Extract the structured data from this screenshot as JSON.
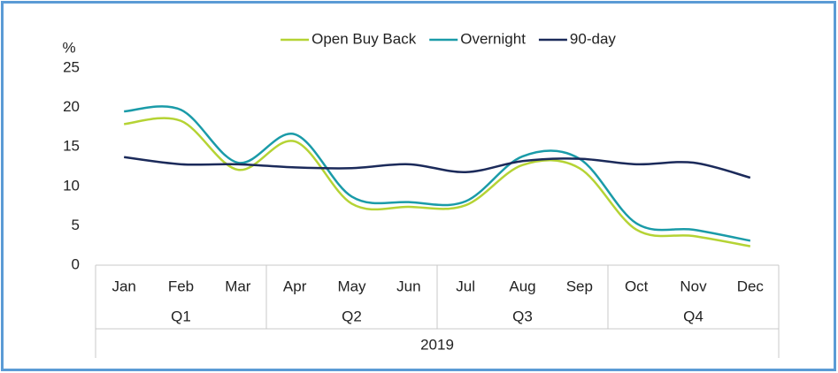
{
  "chart_data": {
    "type": "line",
    "ylabel": "%",
    "categories": [
      "Jan",
      "Feb",
      "Mar",
      "Apr",
      "May",
      "Jun",
      "Jul",
      "Aug",
      "Sep",
      "Oct",
      "Nov",
      "Dec"
    ],
    "quarters": [
      "Q1",
      "Q2",
      "Q3",
      "Q4"
    ],
    "year": "2019",
    "series": [
      {
        "name": "Open Buy Back",
        "color": "#b5d334",
        "values": [
          17.9,
          18.3,
          12.1,
          15.7,
          7.8,
          7.4,
          7.6,
          12.7,
          12.3,
          4.5,
          3.7,
          2.4
        ]
      },
      {
        "name": "Overnight",
        "color": "#1a9ba8",
        "values": [
          19.5,
          19.7,
          13.0,
          16.6,
          8.7,
          8.0,
          8.1,
          13.8,
          13.5,
          5.3,
          4.5,
          3.1
        ]
      },
      {
        "name": "90-day",
        "color": "#1b2a5a",
        "values": [
          13.7,
          12.8,
          12.8,
          12.4,
          12.3,
          12.8,
          11.8,
          13.2,
          13.5,
          12.8,
          13.0,
          11.1
        ]
      }
    ],
    "ylim": [
      0,
      25
    ],
    "yticks": [
      0,
      5,
      10,
      15,
      20,
      25
    ],
    "grid": false,
    "smooth": true,
    "legend": "top"
  }
}
